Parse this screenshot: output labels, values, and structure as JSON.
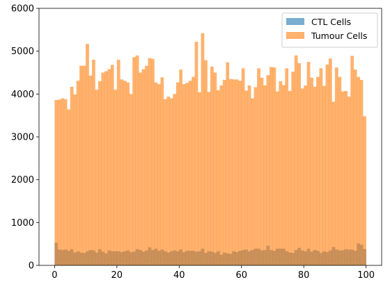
{
  "chart_data": {
    "type": "bar",
    "title": "",
    "xlabel": "",
    "ylabel": "",
    "xlim": [
      -5,
      105
    ],
    "ylim": [
      0,
      6000
    ],
    "x_ticks": [
      0,
      20,
      40,
      60,
      80,
      100
    ],
    "y_ticks": [
      0,
      1000,
      2000,
      3000,
      4000,
      5000,
      6000
    ],
    "bins": {
      "start": 0,
      "end": 100,
      "count": 100
    },
    "legend": {
      "position": "top-right",
      "entries": [
        "CTL Cells",
        "Tumour Cells"
      ]
    },
    "grid": false,
    "series": [
      {
        "name": "CTL Cells",
        "color": "#1f77b4",
        "opacity": 0.6,
        "values": [
          530,
          370,
          360,
          370,
          340,
          380,
          300,
          330,
          300,
          290,
          330,
          360,
          350,
          300,
          380,
          320,
          280,
          350,
          330,
          330,
          330,
          310,
          330,
          350,
          310,
          320,
          380,
          360,
          320,
          350,
          420,
          360,
          390,
          340,
          370,
          330,
          300,
          330,
          350,
          330,
          370,
          310,
          340,
          340,
          340,
          320,
          330,
          390,
          290,
          330,
          320,
          290,
          330,
          250,
          300,
          280,
          270,
          330,
          310,
          340,
          360,
          370,
          330,
          360,
          390,
          390,
          350,
          360,
          460,
          360,
          340,
          390,
          390,
          390,
          330,
          300,
          290,
          360,
          410,
          350,
          330,
          390,
          320,
          360,
          340,
          290,
          330,
          310,
          350,
          430,
          370,
          350,
          350,
          380,
          370,
          370,
          340,
          510,
          480,
          380
        ]
      },
      {
        "name": "Tumour Cells",
        "color": "#ff7f0e",
        "opacity": 0.6,
        "values": [
          3860,
          3870,
          3900,
          3880,
          3640,
          4170,
          3990,
          4310,
          4660,
          4660,
          5170,
          4430,
          4800,
          4100,
          4300,
          4500,
          4530,
          4580,
          4680,
          4100,
          4800,
          4340,
          4310,
          4270,
          4000,
          4860,
          4900,
          4500,
          4580,
          4660,
          4840,
          4820,
          4270,
          4230,
          4390,
          3880,
          3940,
          3900,
          4000,
          4270,
          4570,
          4230,
          4260,
          4310,
          4400,
          5220,
          4040,
          5420,
          4790,
          4050,
          4640,
          4500,
          4090,
          4200,
          4330,
          4740,
          4350,
          4340,
          4340,
          4310,
          4600,
          4080,
          4200,
          3900,
          4160,
          4600,
          4380,
          4200,
          4440,
          4630,
          4620,
          4060,
          4300,
          4210,
          4600,
          4070,
          4520,
          4900,
          4720,
          4130,
          4200,
          4750,
          4380,
          4170,
          4400,
          4600,
          4190,
          4690,
          4830,
          3820,
          4620,
          4400,
          4060,
          4070,
          3940,
          4890,
          4570,
          4400,
          4330,
          3480
        ]
      }
    ]
  }
}
